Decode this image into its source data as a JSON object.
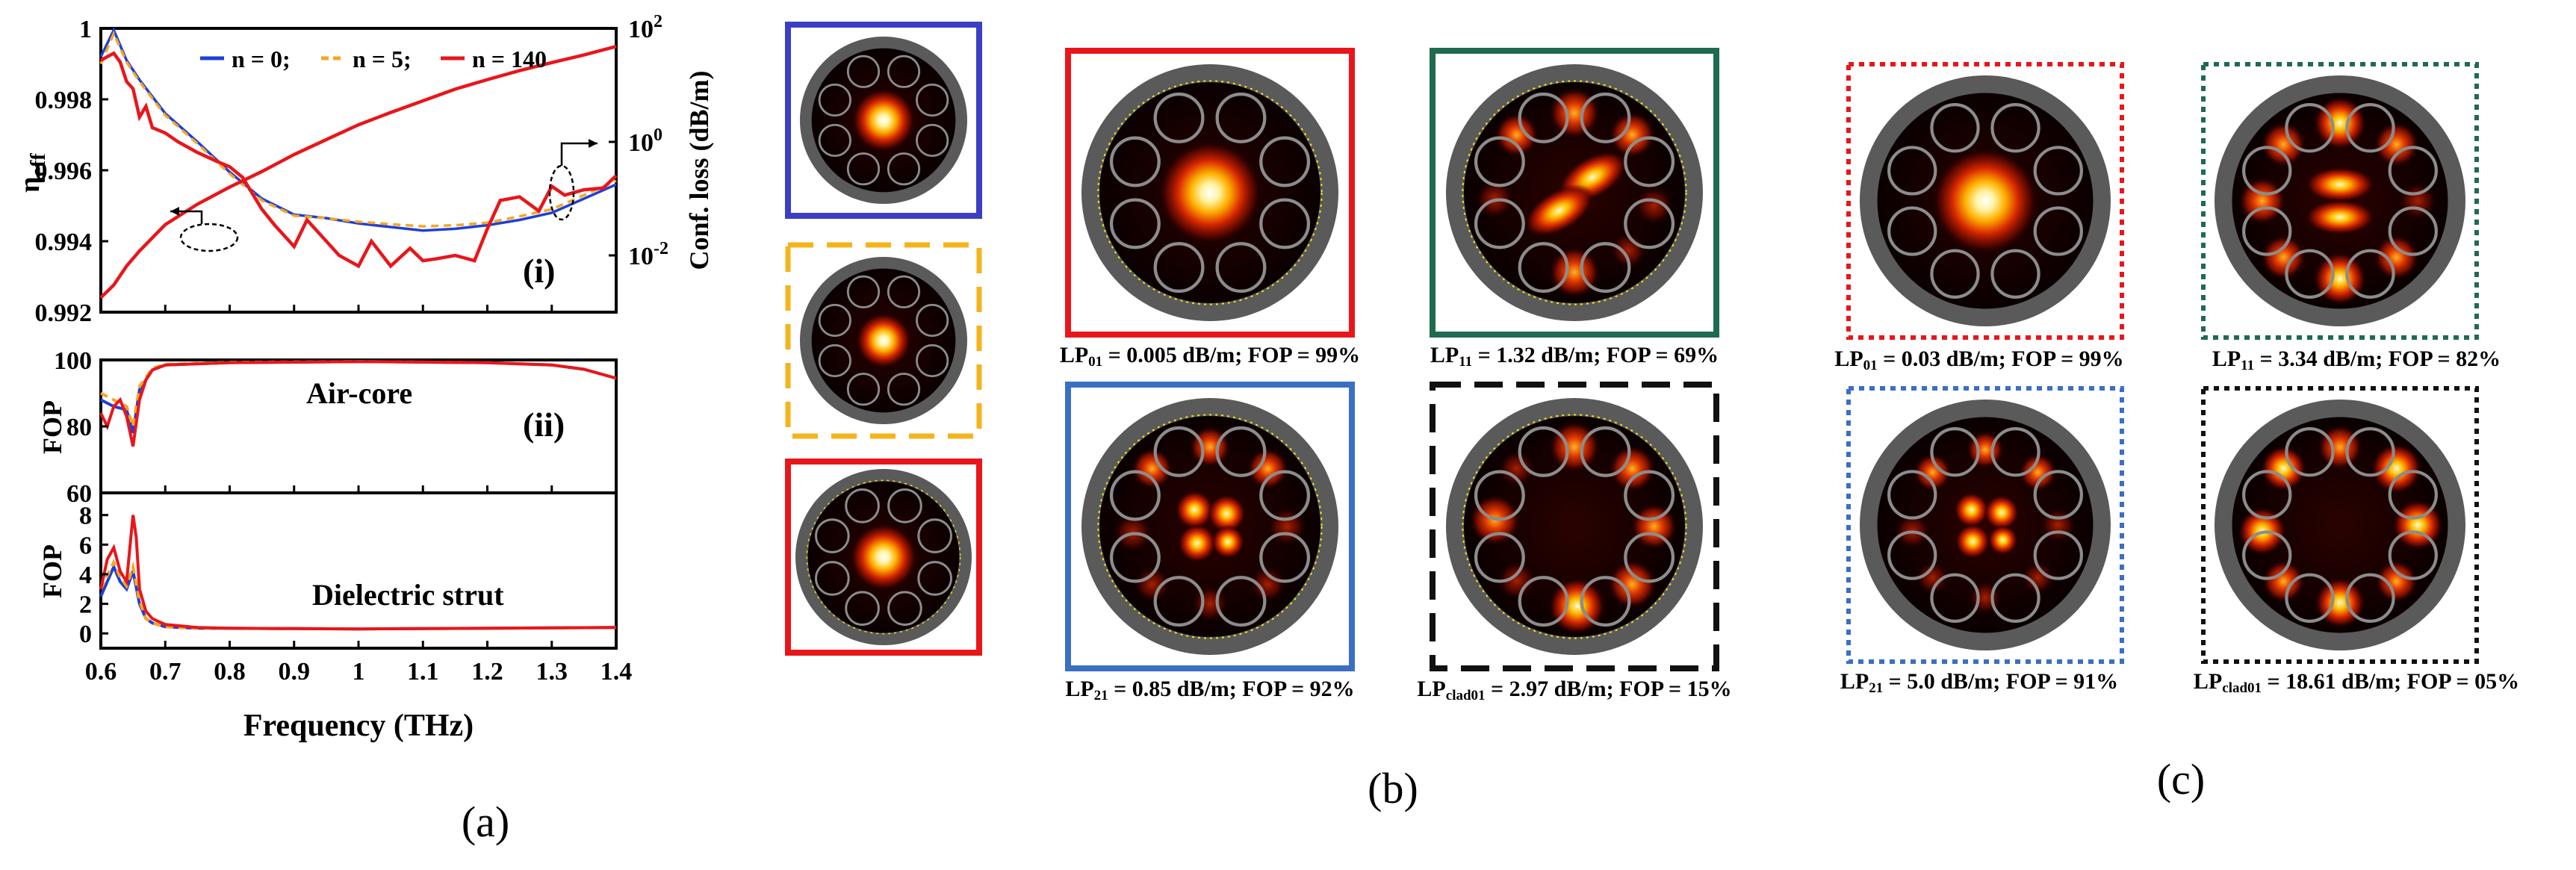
{
  "panel_a": {
    "label": "(a)",
    "xlabel": "Frequency (THz)",
    "xticks": [
      "0.6",
      "0.7",
      "0.8",
      "0.9",
      "1",
      "1.1",
      "1.2",
      "1.3",
      "1.4"
    ],
    "top": {
      "roman": "(i)",
      "ylabel_left_main": "η",
      "ylabel_left_sub": "eff",
      "ylabel_right": "Conf. loss (dB/m)",
      "left_ticks": [
        "1",
        "0.998",
        "0.996",
        "0.994",
        "0.992"
      ],
      "right_ticks_base": [
        "10",
        "10",
        "10"
      ],
      "right_ticks_exp": [
        "2",
        "0",
        "-2"
      ],
      "legend": [
        "n = 0;",
        "n = 5;",
        "n = 140"
      ]
    },
    "mid": {
      "roman": "(ii)",
      "ylabel": "FOP",
      "annotation": "Air-core",
      "yticks": [
        "100",
        "80",
        "60"
      ]
    },
    "bottom": {
      "ylabel": "FOP",
      "annotation": "Dielectric strut",
      "yticks": [
        "8",
        "6",
        "4",
        "2",
        "0"
      ]
    }
  },
  "panel_b": {
    "label": "(b)",
    "captions": [
      {
        "main": "LP",
        "sub": "01",
        "rest": " = 0.005 dB/m; FOP = 99%"
      },
      {
        "main": "LP",
        "sub": "11",
        "rest": " = 1.32 dB/m; FOP = 69%"
      },
      {
        "main": "LP",
        "sub": "21",
        "rest": " = 0.85 dB/m; FOP = 92%"
      },
      {
        "main": "LP",
        "sub": "clad01",
        "rest": " = 2.97 dB/m; FOP = 15%"
      }
    ]
  },
  "panel_c": {
    "label": "(c)",
    "captions": [
      {
        "main": "LP",
        "sub": "01",
        "rest": " = 0.03 dB/m; FOP = 99%"
      },
      {
        "main": "LP",
        "sub": "11",
        "rest": " = 3.34 dB/m; FOP = 82%"
      },
      {
        "main": "LP",
        "sub": "21",
        "rest": " = 5.0 dB/m; FOP = 91%"
      },
      {
        "main": "LP",
        "sub": "clad01",
        "rest": " = 18.61 dB/m; FOP = 05%"
      }
    ]
  },
  "colors": {
    "n0": "#1f3fd6",
    "n5": "#f5a623",
    "n140": "#e8161b",
    "frame_blue": "#3b3fc4",
    "frame_orange": "#f5b31b",
    "frame_red": "#e8161b",
    "frame_green": "#1e6b4f",
    "frame_steel": "#3a6fc4",
    "frame_black": "#111111",
    "fiber_gray": "#5a5a5a",
    "tube": "#8c8c8c"
  },
  "chart_data": {
    "type": "line",
    "xlabel": "Frequency (THz)",
    "xlim": [
      0.6,
      1.4
    ],
    "panels": [
      {
        "name": "(i)",
        "ylabel": "η_eff",
        "ylim": [
          0.992,
          1.0
        ],
        "y2label": "Conf. loss (dB/m)",
        "y2lim": [
          0.001,
          100
        ],
        "y2scale": "log",
        "series": [
          {
            "name": "n = 0",
            "axis": "left",
            "x": [
              0.6,
              0.62,
              0.64,
              0.66,
              0.7,
              0.75,
              0.8,
              0.85,
              0.9,
              0.95,
              1.0,
              1.05,
              1.1,
              1.15,
              1.2,
              1.25,
              1.3,
              1.35,
              1.4
            ],
            "y": [
              0.9992,
              0.99995,
              0.9991,
              0.99855,
              0.9976,
              0.9968,
              0.99595,
              0.9952,
              0.99475,
              0.99465,
              0.9945,
              0.9944,
              0.9943,
              0.99435,
              0.99445,
              0.9946,
              0.9948,
              0.9952,
              0.9956
            ]
          },
          {
            "name": "n = 5",
            "axis": "left",
            "x": [
              0.6,
              0.62,
              0.64,
              0.66,
              0.7,
              0.75,
              0.8,
              0.85,
              0.9,
              0.95,
              1.0,
              1.05,
              1.1,
              1.15,
              1.2,
              1.25,
              1.3,
              1.35,
              1.4
            ],
            "y": [
              0.999,
              0.99985,
              0.99905,
              0.9985,
              0.99755,
              0.99675,
              0.9959,
              0.99515,
              0.99472,
              0.99465,
              0.99455,
              0.99448,
              0.99442,
              0.99445,
              0.99452,
              0.9947,
              0.9949,
              0.9953,
              0.9957
            ]
          },
          {
            "name": "n = 140",
            "axis": "left",
            "x": [
              0.6,
              0.61,
              0.62,
              0.63,
              0.64,
              0.65,
              0.66,
              0.67,
              0.68,
              0.7,
              0.72,
              0.75,
              0.78,
              0.8,
              0.82,
              0.85,
              0.87,
              0.9,
              0.92,
              0.95,
              0.97,
              1.0,
              1.02,
              1.05,
              1.08,
              1.1,
              1.12,
              1.15,
              1.18,
              1.2,
              1.22,
              1.25,
              1.28,
              1.3,
              1.32,
              1.35,
              1.38,
              1.4
            ],
            "y": [
              0.9991,
              0.9992,
              0.9993,
              0.99905,
              0.9985,
              0.9983,
              0.9975,
              0.9978,
              0.9972,
              0.99705,
              0.9968,
              0.9965,
              0.99625,
              0.9961,
              0.9958,
              0.9949,
              0.99445,
              0.99385,
              0.9946,
              0.994,
              0.9936,
              0.9933,
              0.994,
              0.9933,
              0.9938,
              0.99345,
              0.9935,
              0.9936,
              0.99345,
              0.99435,
              0.99515,
              0.99525,
              0.99485,
              0.99555,
              0.9953,
              0.99545,
              0.9955,
              0.99585
            ]
          },
          {
            "name": "n = 140 conf. loss",
            "axis": "right",
            "x": [
              0.6,
              0.62,
              0.64,
              0.66,
              0.7,
              0.75,
              0.8,
              0.85,
              0.9,
              0.95,
              1.0,
              1.05,
              1.1,
              1.15,
              1.2,
              1.25,
              1.3,
              1.35,
              1.4
            ],
            "y": [
              0.0018,
              0.003,
              0.0065,
              0.012,
              0.035,
              0.08,
              0.16,
              0.3,
              0.6,
              1.1,
              2.0,
              3.3,
              5.3,
              8.5,
              12.5,
              18,
              25,
              34,
              48
            ]
          }
        ]
      },
      {
        "name": "(ii)",
        "ylabel": "FOP",
        "ylim": [
          60,
          100
        ],
        "annotation": "Air-core",
        "series": [
          {
            "name": "n = 0",
            "x": [
              0.6,
              0.62,
              0.64,
              0.65,
              0.66,
              0.68,
              0.7,
              0.8,
              1.0,
              1.2,
              1.3,
              1.35,
              1.4
            ],
            "y": [
              88,
              86,
              85,
              78,
              91,
              97,
              98.5,
              99.2,
              99.5,
              99.2,
              98.5,
              97.2,
              94.5
            ]
          },
          {
            "name": "n = 5",
            "x": [
              0.6,
              0.62,
              0.64,
              0.65,
              0.66,
              0.68,
              0.7,
              0.8,
              1.0,
              1.2,
              1.3,
              1.35,
              1.4
            ],
            "y": [
              90,
              88,
              86,
              80,
              92,
              97.5,
              98.7,
              99.3,
              99.5,
              99.2,
              98.5,
              97.2,
              94.5
            ]
          },
          {
            "name": "n = 140",
            "x": [
              0.6,
              0.61,
              0.62,
              0.63,
              0.64,
              0.65,
              0.66,
              0.67,
              0.68,
              0.7,
              0.8,
              1.0,
              1.2,
              1.3,
              1.35,
              1.4
            ],
            "y": [
              84,
              80,
              86,
              88,
              83,
              74,
              88,
              94,
              97,
              98.5,
              99.2,
              99.5,
              99.2,
              98.5,
              97.2,
              94.5
            ]
          }
        ]
      },
      {
        "name": "",
        "ylabel": "FOP",
        "ylim": [
          -1,
          9.5
        ],
        "annotation": "Dielectric strut",
        "series": [
          {
            "name": "n = 0",
            "x": [
              0.6,
              0.62,
              0.63,
              0.64,
              0.65,
              0.66,
              0.67,
              0.68,
              0.7,
              0.75,
              0.8,
              1.0,
              1.2,
              1.4
            ],
            "y": [
              2.5,
              4.5,
              3.5,
              3.0,
              4.2,
              2.0,
              1.0,
              0.7,
              0.45,
              0.35,
              0.35,
              0.3,
              0.35,
              0.4
            ]
          },
          {
            "name": "n = 5",
            "x": [
              0.6,
              0.62,
              0.63,
              0.64,
              0.65,
              0.66,
              0.67,
              0.68,
              0.7,
              0.75,
              0.8,
              1.0,
              1.2,
              1.4
            ],
            "y": [
              3.0,
              4.8,
              3.8,
              3.2,
              4.5,
              2.2,
              1.0,
              0.7,
              0.45,
              0.35,
              0.35,
              0.3,
              0.35,
              0.4
            ]
          },
          {
            "name": "n = 140",
            "x": [
              0.6,
              0.61,
              0.62,
              0.63,
              0.64,
              0.65,
              0.655,
              0.66,
              0.67,
              0.68,
              0.7,
              0.75,
              0.8,
              1.0,
              1.2,
              1.4
            ],
            "y": [
              3.0,
              5.0,
              5.8,
              4.2,
              3.5,
              8.0,
              6.5,
              3.0,
              1.5,
              1.0,
              0.6,
              0.4,
              0.35,
              0.3,
              0.35,
              0.4
            ]
          }
        ]
      }
    ]
  }
}
